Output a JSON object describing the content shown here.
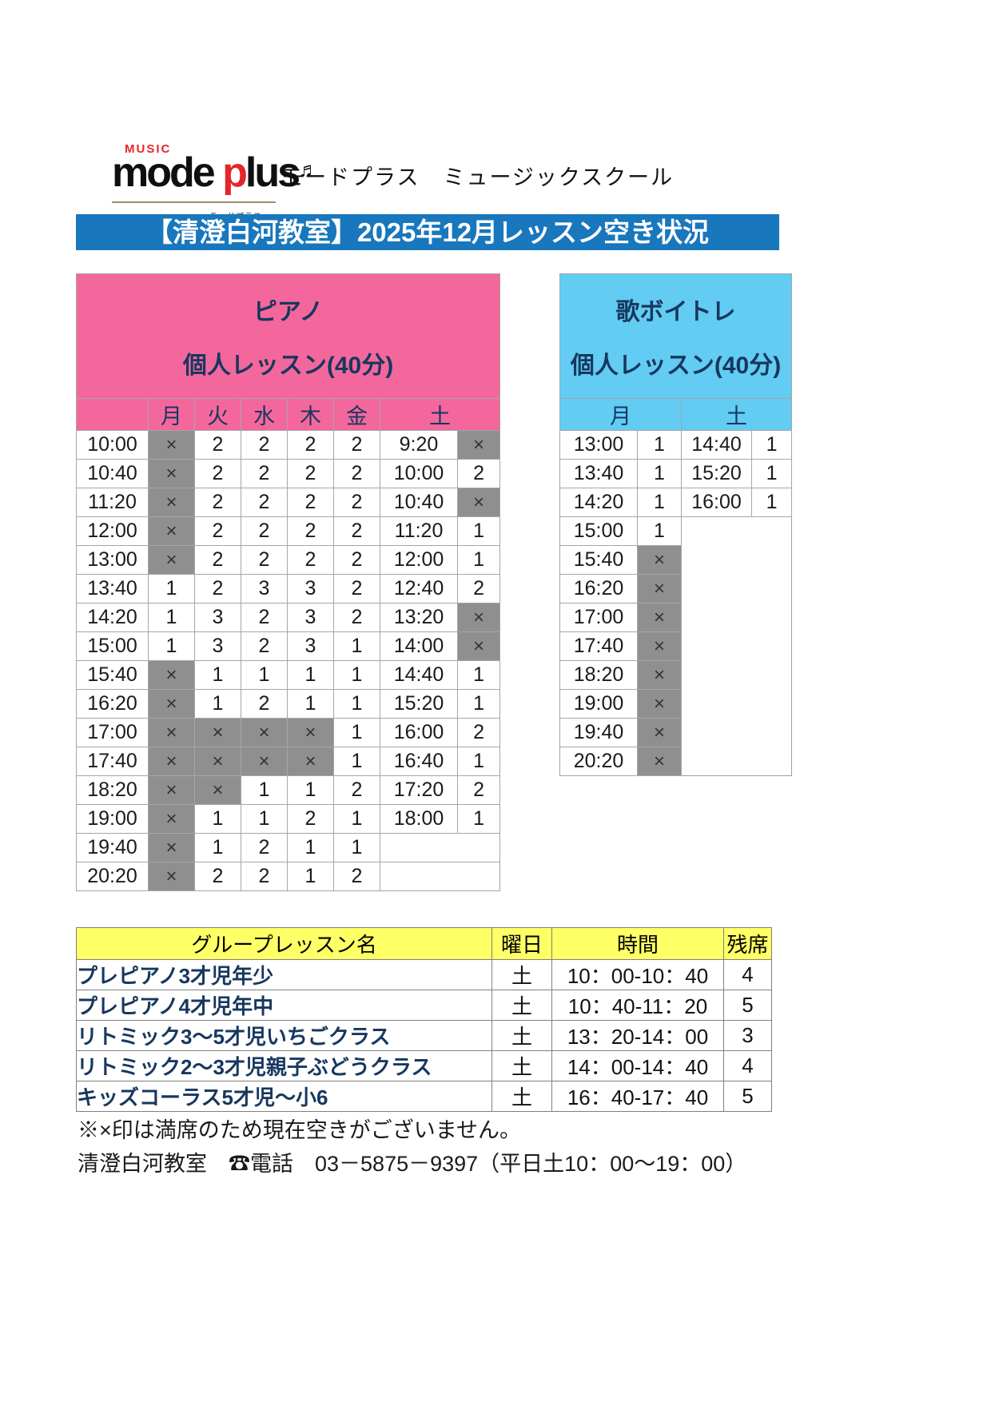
{
  "logo": {
    "music": "MUSIC",
    "word_1": "mode ",
    "word_p": "p",
    "word_2": "lus",
    "note": "♬",
    "caption": "モードプラス"
  },
  "school_name": "モードプラス　ミュージックスクール",
  "banner": {
    "text": "【清澄白河教室】2025年12月レッスン空き状況",
    "bg": "#1877BD",
    "fg": "#ffffff"
  },
  "piano": {
    "title1": "ピアノ",
    "title2": "個人レッスン(40分)",
    "header_bg": "#F4679D",
    "title_fg": "#17375E",
    "full_bg": "#8F8F8F",
    "full_mark": "×",
    "days": [
      "月",
      "火",
      "水",
      "木",
      "金",
      "土"
    ],
    "rows": [
      {
        "time": "10:00",
        "mon": "×",
        "tue": "2",
        "wed": "2",
        "thu": "2",
        "fri": "2",
        "sat_time": "9:20",
        "sat": "×"
      },
      {
        "time": "10:40",
        "mon": "×",
        "tue": "2",
        "wed": "2",
        "thu": "2",
        "fri": "2",
        "sat_time": "10:00",
        "sat": "2"
      },
      {
        "time": "11:20",
        "mon": "×",
        "tue": "2",
        "wed": "2",
        "thu": "2",
        "fri": "2",
        "sat_time": "10:40",
        "sat": "×"
      },
      {
        "time": "12:00",
        "mon": "×",
        "tue": "2",
        "wed": "2",
        "thu": "2",
        "fri": "2",
        "sat_time": "11:20",
        "sat": "1"
      },
      {
        "time": "13:00",
        "mon": "×",
        "tue": "2",
        "wed": "2",
        "thu": "2",
        "fri": "2",
        "sat_time": "12:00",
        "sat": "1"
      },
      {
        "time": "13:40",
        "mon": "1",
        "tue": "2",
        "wed": "3",
        "thu": "3",
        "fri": "2",
        "sat_time": "12:40",
        "sat": "2"
      },
      {
        "time": "14:20",
        "mon": "1",
        "tue": "3",
        "wed": "2",
        "thu": "3",
        "fri": "2",
        "sat_time": "13:20",
        "sat": "×"
      },
      {
        "time": "15:00",
        "mon": "1",
        "tue": "3",
        "wed": "2",
        "thu": "3",
        "fri": "1",
        "sat_time": "14:00",
        "sat": "×"
      },
      {
        "time": "15:40",
        "mon": "×",
        "tue": "1",
        "wed": "1",
        "thu": "1",
        "fri": "1",
        "sat_time": "14:40",
        "sat": "1"
      },
      {
        "time": "16:20",
        "mon": "×",
        "tue": "1",
        "wed": "2",
        "thu": "1",
        "fri": "1",
        "sat_time": "15:20",
        "sat": "1"
      },
      {
        "time": "17:00",
        "mon": "×",
        "tue": "×",
        "wed": "×",
        "thu": "×",
        "fri": "1",
        "sat_time": "16:00",
        "sat": "2"
      },
      {
        "time": "17:40",
        "mon": "×",
        "tue": "×",
        "wed": "×",
        "thu": "×",
        "fri": "1",
        "sat_time": "16:40",
        "sat": "1"
      },
      {
        "time": "18:20",
        "mon": "×",
        "tue": "×",
        "wed": "1",
        "thu": "1",
        "fri": "2",
        "sat_time": "17:20",
        "sat": "2"
      },
      {
        "time": "19:00",
        "mon": "×",
        "tue": "1",
        "wed": "1",
        "thu": "2",
        "fri": "1",
        "sat_time": "18:00",
        "sat": "1"
      },
      {
        "time": "19:40",
        "mon": "×",
        "tue": "1",
        "wed": "2",
        "thu": "1",
        "fri": "1",
        "sat_time": "",
        "sat": ""
      },
      {
        "time": "20:20",
        "mon": "×",
        "tue": "2",
        "wed": "2",
        "thu": "1",
        "fri": "2",
        "sat_time": null,
        "sat": null
      }
    ]
  },
  "voice": {
    "title1": "歌ボイトレ",
    "title2": "個人レッスン(40分)",
    "header_bg": "#62CCF3",
    "title_fg": "#17375E",
    "full_bg": "#8F8F8F",
    "full_mark": "×",
    "days": [
      "月",
      "土"
    ],
    "rows": [
      {
        "time": "13:00",
        "mon": "1",
        "sat_time": "14:40",
        "sat": "1"
      },
      {
        "time": "13:40",
        "mon": "1",
        "sat_time": "15:20",
        "sat": "1"
      },
      {
        "time": "14:20",
        "mon": "1",
        "sat_time": "16:00",
        "sat": "1"
      },
      {
        "time": "15:00",
        "mon": "1",
        "sat_time": null,
        "sat": null
      },
      {
        "time": "15:40",
        "mon": "×",
        "sat_time": null,
        "sat": null
      },
      {
        "time": "16:20",
        "mon": "×",
        "sat_time": null,
        "sat": null
      },
      {
        "time": "17:00",
        "mon": "×",
        "sat_time": null,
        "sat": null
      },
      {
        "time": "17:40",
        "mon": "×",
        "sat_time": null,
        "sat": null
      },
      {
        "time": "18:20",
        "mon": "×",
        "sat_time": null,
        "sat": null
      },
      {
        "time": "19:00",
        "mon": "×",
        "sat_time": null,
        "sat": null
      },
      {
        "time": "19:40",
        "mon": "×",
        "sat_time": null,
        "sat": null
      },
      {
        "time": "20:20",
        "mon": "×",
        "sat_time": null,
        "sat": null
      }
    ]
  },
  "group": {
    "headers": [
      "グループレッスン名",
      "曜日",
      "時間",
      "残席"
    ],
    "header_bg": "#FFFF66",
    "rows": [
      {
        "name": "プレピアノ3才児年少",
        "day": "土",
        "time": "10：00-10：40",
        "seats": "4"
      },
      {
        "name": "プレピアノ4才児年中",
        "day": "土",
        "time": "10：40-11：20",
        "seats": "5"
      },
      {
        "name": "リトミック3〜5才児いちごクラス",
        "day": "土",
        "time": "13：20-14：00",
        "seats": "3"
      },
      {
        "name": "リトミック2〜3才児親子ぶどうクラス",
        "day": "土",
        "time": "14：00-14：40",
        "seats": "4"
      },
      {
        "name": "キッズコーラス5才児〜小6",
        "day": "土",
        "time": "16：40-17：40",
        "seats": "5"
      }
    ]
  },
  "footer": {
    "note": "※×印は満席のため現在空きがございません。",
    "contact": "清澄白河教室　☎電話　03－5875－9397（平日土10：00～19：00）"
  }
}
